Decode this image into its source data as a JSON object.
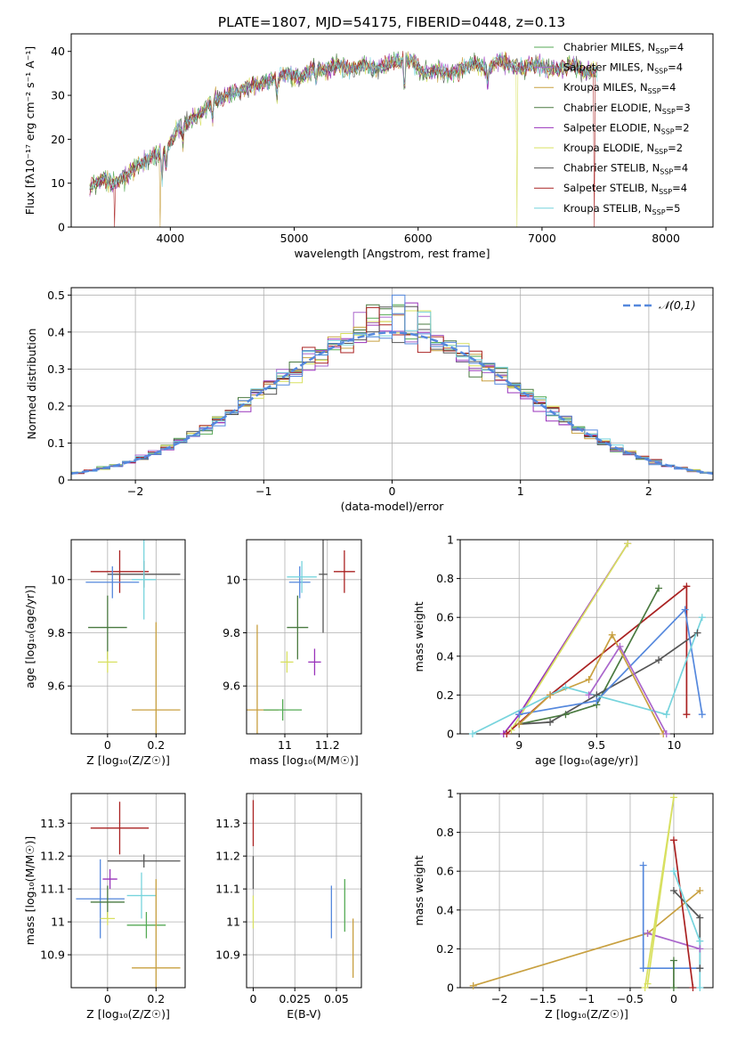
{
  "figure_title": "PLATE=1807, MJD=54175, FIBERID=0448, z=0.13",
  "colors": {
    "Chabrier MILES": "#55aa55",
    "Salpeter MILES": "#aa66cc",
    "Kroupa MILES": "#c8a040",
    "Chabrier ELODIE": "#4a7a40",
    "Salpeter ELODIE": "#9933bb",
    "Kroupa ELODIE": "#d8e060",
    "Chabrier STELIB": "#555555",
    "Salpeter STELIB": "#aa2222",
    "Kroupa STELIB": "#77d4dd",
    "normal_curve": "#5588dd"
  },
  "chart_data": [
    {
      "id": "spectrum",
      "type": "line",
      "xlabel": "wavelength [Angstrom, rest frame]",
      "ylabel": "Flux [fλ10⁻¹⁷ erg cm⁻² s⁻¹ A⁻¹]",
      "xlim": [
        3200,
        8380
      ],
      "ylim": [
        0,
        44
      ],
      "xticks": [
        4000,
        5000,
        6000,
        7000,
        8000
      ],
      "yticks": [
        0,
        10,
        20,
        30,
        40
      ],
      "grid": false,
      "legend_position": "top-right",
      "spectrum_envelope": {
        "x": [
          3350,
          3450,
          3550,
          3650,
          3750,
          3850,
          3950,
          4050,
          4150,
          4250,
          4350,
          4450,
          4550,
          4650,
          4750,
          4850,
          4950,
          5050,
          5150,
          5250,
          5350,
          5450,
          5550,
          5650,
          5750,
          5850,
          5950,
          6050,
          6150,
          6250,
          6350,
          6450,
          6550,
          6650,
          6750,
          6850,
          6950,
          7050,
          7150,
          7250,
          7350,
          7450
        ],
        "y": [
          9,
          11,
          10,
          12,
          14,
          16,
          17,
          22,
          24,
          26,
          29,
          30,
          31,
          32,
          33,
          34,
          35,
          34,
          36,
          36,
          37,
          36,
          37,
          36,
          37,
          38,
          38,
          35,
          36,
          35,
          36,
          37,
          36,
          38,
          37,
          36,
          37,
          36,
          36,
          37,
          35,
          36
        ]
      },
      "series": [
        {
          "label": "Chabrier MILES, N$_{SSP}$=4",
          "label_text": "Chabrier MILES, N",
          "sub": "SSP",
          "suffix": "=4",
          "color_key": "Chabrier MILES"
        },
        {
          "label_text": "Salpeter MILES, N",
          "sub": "SSP",
          "suffix": "=4",
          "color_key": "Salpeter MILES"
        },
        {
          "label_text": "Kroupa MILES, N",
          "sub": "SSP",
          "suffix": "=4",
          "color_key": "Kroupa MILES",
          "drop_x": 3920
        },
        {
          "label_text": "Chabrier ELODIE, N",
          "sub": "SSP",
          "suffix": "=3",
          "color_key": "Chabrier ELODIE"
        },
        {
          "label_text": "Salpeter ELODIE, N",
          "sub": "SSP",
          "suffix": "=2",
          "color_key": "Salpeter ELODIE"
        },
        {
          "label_text": "Kroupa ELODIE, N",
          "sub": "SSP",
          "suffix": "=2",
          "color_key": "Kroupa ELODIE",
          "drop_x": 6800
        },
        {
          "label_text": "Chabrier STELIB, N",
          "sub": "SSP",
          "suffix": "=4",
          "color_key": "Chabrier STELIB"
        },
        {
          "label_text": "Salpeter STELIB, N",
          "sub": "SSP",
          "suffix": "=4",
          "color_key": "Salpeter STELIB",
          "drop_x": 3550,
          "drop_x2": 7420
        },
        {
          "label_text": "Kroupa STELIB, N",
          "sub": "SSP",
          "suffix": "=5",
          "color_key": "Kroupa STELIB"
        }
      ]
    },
    {
      "id": "residuals",
      "type": "bar",
      "xlabel": "(data-model)/error",
      "ylabel": "Normed distribution",
      "xlim": [
        -2.5,
        2.5
      ],
      "ylim": [
        0,
        0.52
      ],
      "xticks": [
        -2,
        -1,
        0,
        1,
        2
      ],
      "yticks": [
        0.0,
        0.1,
        0.2,
        0.3,
        0.4,
        0.5
      ],
      "grid": true,
      "legend_position": "top-right",
      "legend_label": "𝒩(0,1)",
      "bin_width": 0.1,
      "normal_mean": 0,
      "normal_sigma": 1
    },
    {
      "id": "age_vs_Z",
      "type": "scatter",
      "xlabel": "Z [log₁₀(Z/Z☉)]",
      "ylabel": "age  [log₁₀(age/yr)]",
      "xlim": [
        -0.15,
        0.32
      ],
      "ylim": [
        9.42,
        10.15
      ],
      "xticks": [
        0.0,
        0.2
      ],
      "yticks": [
        9.6,
        9.8,
        10.0
      ],
      "grid": true,
      "points": [
        {
          "x": 0.05,
          "y": 10.03,
          "xerr": 0.12,
          "yerr": 0.08,
          "color_key": "Salpeter STELIB"
        },
        {
          "x": 0.15,
          "y": 10.02,
          "xerr": 0.15,
          "yerr": 0.05,
          "color_key": "Chabrier STELIB"
        },
        {
          "x": 0.02,
          "y": 9.99,
          "xerr": 0.11,
          "yerr": 0.06,
          "color_key": "normal_curve"
        },
        {
          "x": 0.15,
          "y": 10.0,
          "xerr": 0.05,
          "yerr": 0.15,
          "color_key": "Kroupa STELIB"
        },
        {
          "x": 0.0,
          "y": 9.82,
          "xerr": 0.08,
          "yerr": 0.12,
          "color_key": "Chabrier ELODIE"
        },
        {
          "x": 0.0,
          "y": 9.69,
          "xerr": 0.04,
          "yerr": 0.04,
          "color_key": "Kroupa ELODIE"
        },
        {
          "x": 0.2,
          "y": 9.51,
          "xerr": 0.1,
          "yerr": 0.33,
          "color_key": "Kroupa MILES"
        }
      ]
    },
    {
      "id": "age_vs_mass",
      "type": "scatter",
      "xlabel": "mass [log₁₀(M/M☉)]",
      "ylabel": "",
      "xlim": [
        10.82,
        11.36
      ],
      "ylim": [
        9.42,
        10.15
      ],
      "xticks": [
        11.0,
        11.2
      ],
      "yticks": [
        9.6,
        9.8,
        10.0
      ],
      "grid": true,
      "points": [
        {
          "x": 11.28,
          "y": 10.03,
          "xerr": 0.05,
          "yerr": 0.08,
          "color_key": "Salpeter STELIB"
        },
        {
          "x": 11.18,
          "y": 10.02,
          "xerr": 0.02,
          "yerr": 0.22,
          "color_key": "Chabrier STELIB"
        },
        {
          "x": 11.07,
          "y": 9.99,
          "xerr": 0.05,
          "yerr": 0.06,
          "color_key": "normal_curve"
        },
        {
          "x": 11.08,
          "y": 10.01,
          "xerr": 0.07,
          "yerr": 0.06,
          "color_key": "Kroupa STELIB"
        },
        {
          "x": 11.06,
          "y": 9.82,
          "xerr": 0.05,
          "yerr": 0.12,
          "color_key": "Chabrier ELODIE"
        },
        {
          "x": 11.14,
          "y": 9.69,
          "xerr": 0.03,
          "yerr": 0.05,
          "color_key": "Salpeter ELODIE"
        },
        {
          "x": 11.01,
          "y": 9.69,
          "xerr": 0.03,
          "yerr": 0.04,
          "color_key": "Kroupa ELODIE"
        },
        {
          "x": 10.87,
          "y": 9.51,
          "xerr": 0.1,
          "yerr": 0.32,
          "color_key": "Kroupa MILES"
        },
        {
          "x": 10.99,
          "y": 9.51,
          "xerr": 0.09,
          "yerr": 0.04,
          "color_key": "Chabrier MILES"
        }
      ]
    },
    {
      "id": "weight_vs_age",
      "type": "line",
      "xlabel": "age  [log₁₀(age/yr)]",
      "ylabel": "mass weight",
      "xlim": [
        8.62,
        10.25
      ],
      "ylim": [
        0,
        1.0
      ],
      "xticks": [
        9.0,
        9.5,
        10.0
      ],
      "yticks": [
        0.0,
        0.2,
        0.4,
        0.6,
        0.8,
        1.0
      ],
      "grid": true,
      "series": [
        {
          "color_key": "Salpeter ELODIE",
          "points": [
            [
              8.9,
              0.0
            ],
            [
              9.0,
              0.1
            ],
            [
              9.7,
              0.98
            ]
          ]
        },
        {
          "color_key": "Kroupa ELODIE",
          "points": [
            [
              8.95,
              0.02
            ],
            [
              9.7,
              0.98
            ]
          ]
        },
        {
          "color_key": "Salpeter STELIB",
          "points": [
            [
              8.92,
              0.0
            ],
            [
              9.2,
              0.2
            ],
            [
              10.08,
              0.76
            ],
            [
              10.08,
              0.1
            ]
          ]
        },
        {
          "color_key": "Chabrier ELODIE",
          "points": [
            [
              9.0,
              0.05
            ],
            [
              9.3,
              0.1
            ],
            [
              9.5,
              0.15
            ],
            [
              9.9,
              0.75
            ]
          ]
        },
        {
          "color_key": "Chabrier STELIB",
          "points": [
            [
              9.0,
              0.05
            ],
            [
              9.2,
              0.06
            ],
            [
              9.5,
              0.2
            ],
            [
              9.9,
              0.38
            ],
            [
              10.15,
              0.52
            ]
          ]
        },
        {
          "color_key": "normal_curve",
          "points": [
            [
              9.0,
              0.1
            ],
            [
              9.5,
              0.17
            ],
            [
              10.07,
              0.64
            ],
            [
              10.18,
              0.1
            ]
          ]
        },
        {
          "color_key": "Kroupa MILES",
          "points": [
            [
              9.0,
              0.05
            ],
            [
              9.2,
              0.2
            ],
            [
              9.45,
              0.28
            ],
            [
              9.6,
              0.51
            ],
            [
              9.93,
              0.0
            ]
          ]
        },
        {
          "color_key": "Kroupa STELIB",
          "points": [
            [
              8.7,
              0.0
            ],
            [
              9.3,
              0.24
            ],
            [
              9.95,
              0.1
            ],
            [
              10.18,
              0.6
            ]
          ]
        },
        {
          "color_key": "Salpeter MILES",
          "points": [
            [
              9.45,
              0.2
            ],
            [
              9.65,
              0.45
            ],
            [
              9.95,
              0.0
            ]
          ]
        }
      ]
    },
    {
      "id": "mass_vs_Z",
      "type": "scatter",
      "xlabel": "Z [log₁₀(Z/Z☉)]",
      "ylabel": "mass [log₁₀(M/M☉)]",
      "xlim": [
        -0.15,
        0.32
      ],
      "ylim": [
        10.8,
        11.39
      ],
      "xticks": [
        0.0,
        0.2
      ],
      "yticks": [
        10.9,
        11.0,
        11.1,
        11.2,
        11.3
      ],
      "grid": true,
      "points": [
        {
          "x": 0.05,
          "y": 11.285,
          "xerr": 0.12,
          "yerr": 0.08,
          "color_key": "Salpeter STELIB"
        },
        {
          "x": 0.15,
          "y": 11.185,
          "xerr": 0.15,
          "yerr": 0.02,
          "color_key": "Chabrier STELIB"
        },
        {
          "x": 0.01,
          "y": 11.13,
          "xerr": 0.03,
          "yerr": 0.03,
          "color_key": "Salpeter ELODIE"
        },
        {
          "x": 0.14,
          "y": 11.08,
          "xerr": 0.06,
          "yerr": 0.07,
          "color_key": "Kroupa STELIB"
        },
        {
          "x": -0.03,
          "y": 11.07,
          "xerr": 0.1,
          "yerr": 0.12,
          "color_key": "normal_curve"
        },
        {
          "x": 0.0,
          "y": 11.06,
          "xerr": 0.07,
          "yerr": 0.05,
          "color_key": "Chabrier ELODIE"
        },
        {
          "x": 0.0,
          "y": 11.01,
          "xerr": 0.03,
          "yerr": 0.02,
          "color_key": "Kroupa ELODIE"
        },
        {
          "x": 0.16,
          "y": 10.99,
          "xerr": 0.08,
          "yerr": 0.04,
          "color_key": "Chabrier MILES"
        },
        {
          "x": 0.2,
          "y": 10.86,
          "xerr": 0.1,
          "yerr": 0.27,
          "color_key": "Kroupa MILES"
        }
      ]
    },
    {
      "id": "mass_vs_EBV",
      "type": "scatter",
      "xlabel": "E(B-V)",
      "ylabel": "",
      "xlim": [
        -0.004,
        0.065
      ],
      "ylim": [
        10.8,
        11.39
      ],
      "xticks": [
        0.0,
        0.025,
        0.05
      ],
      "yticks": [
        10.9,
        11.0,
        11.1,
        11.2,
        11.3
      ],
      "grid": true,
      "points": [
        {
          "x": 0.0,
          "y": 11.3,
          "xerr": 0,
          "yerr": 0.07,
          "color_key": "Salpeter STELIB"
        },
        {
          "x": 0.0,
          "y": 11.15,
          "xerr": 0,
          "yerr": 0.05,
          "color_key": "Chabrier STELIB"
        },
        {
          "x": 0.0,
          "y": 11.03,
          "xerr": 0,
          "yerr": 0.05,
          "color_key": "Kroupa ELODIE"
        },
        {
          "x": 0.047,
          "y": 11.03,
          "xerr": 0,
          "yerr": 0.08,
          "color_key": "normal_curve"
        },
        {
          "x": 0.055,
          "y": 11.05,
          "xerr": 0,
          "yerr": 0.08,
          "color_key": "Chabrier MILES"
        },
        {
          "x": 0.06,
          "y": 10.92,
          "xerr": 0,
          "yerr": 0.09,
          "color_key": "Kroupa MILES"
        }
      ]
    },
    {
      "id": "weight_vs_Z",
      "type": "line",
      "xlabel": "Z [log₁₀(Z/Z☉)]",
      "ylabel": "mass weight",
      "xlim": [
        -2.45,
        0.45
      ],
      "ylim": [
        0,
        1.0
      ],
      "xticks": [
        -2.0,
        -1.5,
        -1.0,
        -0.5,
        0.0
      ],
      "yticks": [
        0.0,
        0.2,
        0.4,
        0.6,
        0.8,
        1.0
      ],
      "grid": true,
      "series": [
        {
          "color_key": "Kroupa MILES",
          "points": [
            [
              -2.3,
              0.01
            ],
            [
              -0.3,
              0.28
            ],
            [
              0.3,
              0.5
            ]
          ]
        },
        {
          "color_key": "Salpeter MILES",
          "points": [
            [
              -0.3,
              0.28
            ],
            [
              0.3,
              0.2
            ]
          ]
        },
        {
          "color_key": "Kroupa ELODIE",
          "points": [
            [
              -0.33,
              0.0
            ],
            [
              0.0,
              0.98
            ],
            [
              -0.3,
              0.02
            ]
          ]
        },
        {
          "color_key": "normal_curve",
          "points": [
            [
              -0.35,
              0.63
            ],
            [
              -0.35,
              0.1
            ],
            [
              0.3,
              0.1
            ]
          ]
        },
        {
          "color_key": "Salpeter STELIB",
          "points": [
            [
              0.0,
              0.76
            ],
            [
              0.22,
              0.0
            ]
          ]
        },
        {
          "color_key": "Chabrier STELIB",
          "points": [
            [
              0.0,
              0.5
            ],
            [
              0.3,
              0.36
            ],
            [
              0.3,
              0.1
            ]
          ]
        },
        {
          "color_key": "Kroupa STELIB",
          "points": [
            [
              0.0,
              0.6
            ],
            [
              0.3,
              0.24
            ],
            [
              0.3,
              0.0
            ]
          ]
        },
        {
          "color_key": "Chabrier ELODIE",
          "points": [
            [
              0.0,
              0.14
            ],
            [
              0.0,
              0.0
            ]
          ]
        }
      ]
    }
  ]
}
